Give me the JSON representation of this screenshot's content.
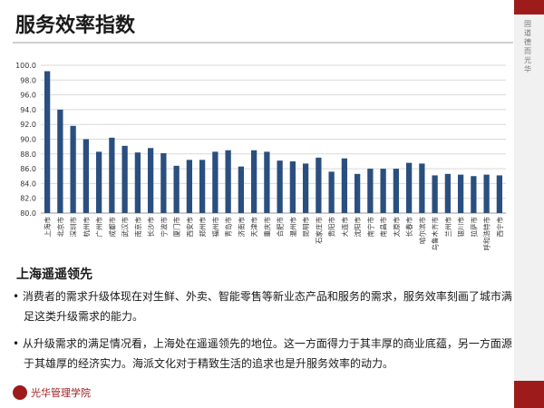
{
  "header": {
    "title": "服务效率指数"
  },
  "sidebar": {
    "vertical_text": "固道德 而光华"
  },
  "chart_data": {
    "type": "bar",
    "title": "",
    "xlabel": "",
    "ylabel": "",
    "ylim": [
      80,
      100
    ],
    "yticks": [
      "80.0",
      "82.0",
      "84.0",
      "86.0",
      "88.0",
      "90.0",
      "92.0",
      "94.0",
      "96.0",
      "98.0",
      "100.0"
    ],
    "grid": true,
    "bar_color": "#2a4f7f",
    "categories": [
      "上海市",
      "北京市",
      "深圳市",
      "杭州市",
      "广州市",
      "成都市",
      "武汉市",
      "南京市",
      "长沙市",
      "宁波市",
      "厦门市",
      "西安市",
      "郑州市",
      "福州市",
      "青岛市",
      "济南市",
      "天津市",
      "重庆市",
      "合肥市",
      "温州市",
      "昆明市",
      "石家庄市",
      "贵阳市",
      "大连市",
      "沈阳市",
      "南宁市",
      "南昌市",
      "太原市",
      "长春市",
      "哈尔滨市",
      "乌鲁木齐市",
      "兰州市",
      "银川市",
      "拉萨市",
      "呼和浩特市",
      "西宁市"
    ],
    "values": [
      99.2,
      94.0,
      91.8,
      90.0,
      88.3,
      90.2,
      89.1,
      88.2,
      88.8,
      88.1,
      86.4,
      87.2,
      87.2,
      88.3,
      88.5,
      86.3,
      88.5,
      88.3,
      87.1,
      87.0,
      86.7,
      87.5,
      85.6,
      87.4,
      85.3,
      86.0,
      86.0,
      86.0,
      86.8,
      86.7,
      85.1,
      85.3,
      85.2,
      85.0,
      85.2,
      85.1
    ]
  },
  "section": {
    "title": "上海遥遥领先",
    "p1": "• 消费者的需求升级体现在对生鲜、外卖、智能零售等新业态产品和服务的需求，服务效率刻画了城市满足这类升级需求的能力。",
    "p2": "• 从升级需求的满足情况看，上海处在遥遥领先的地位。这一方面得力于其丰厚的商业底蕴，另一方面源于其雄厚的经济实力。海派文化对于精致生活的追求也是升服务效率的动力。"
  },
  "footer": {
    "logo_text": "光华管理学院"
  }
}
